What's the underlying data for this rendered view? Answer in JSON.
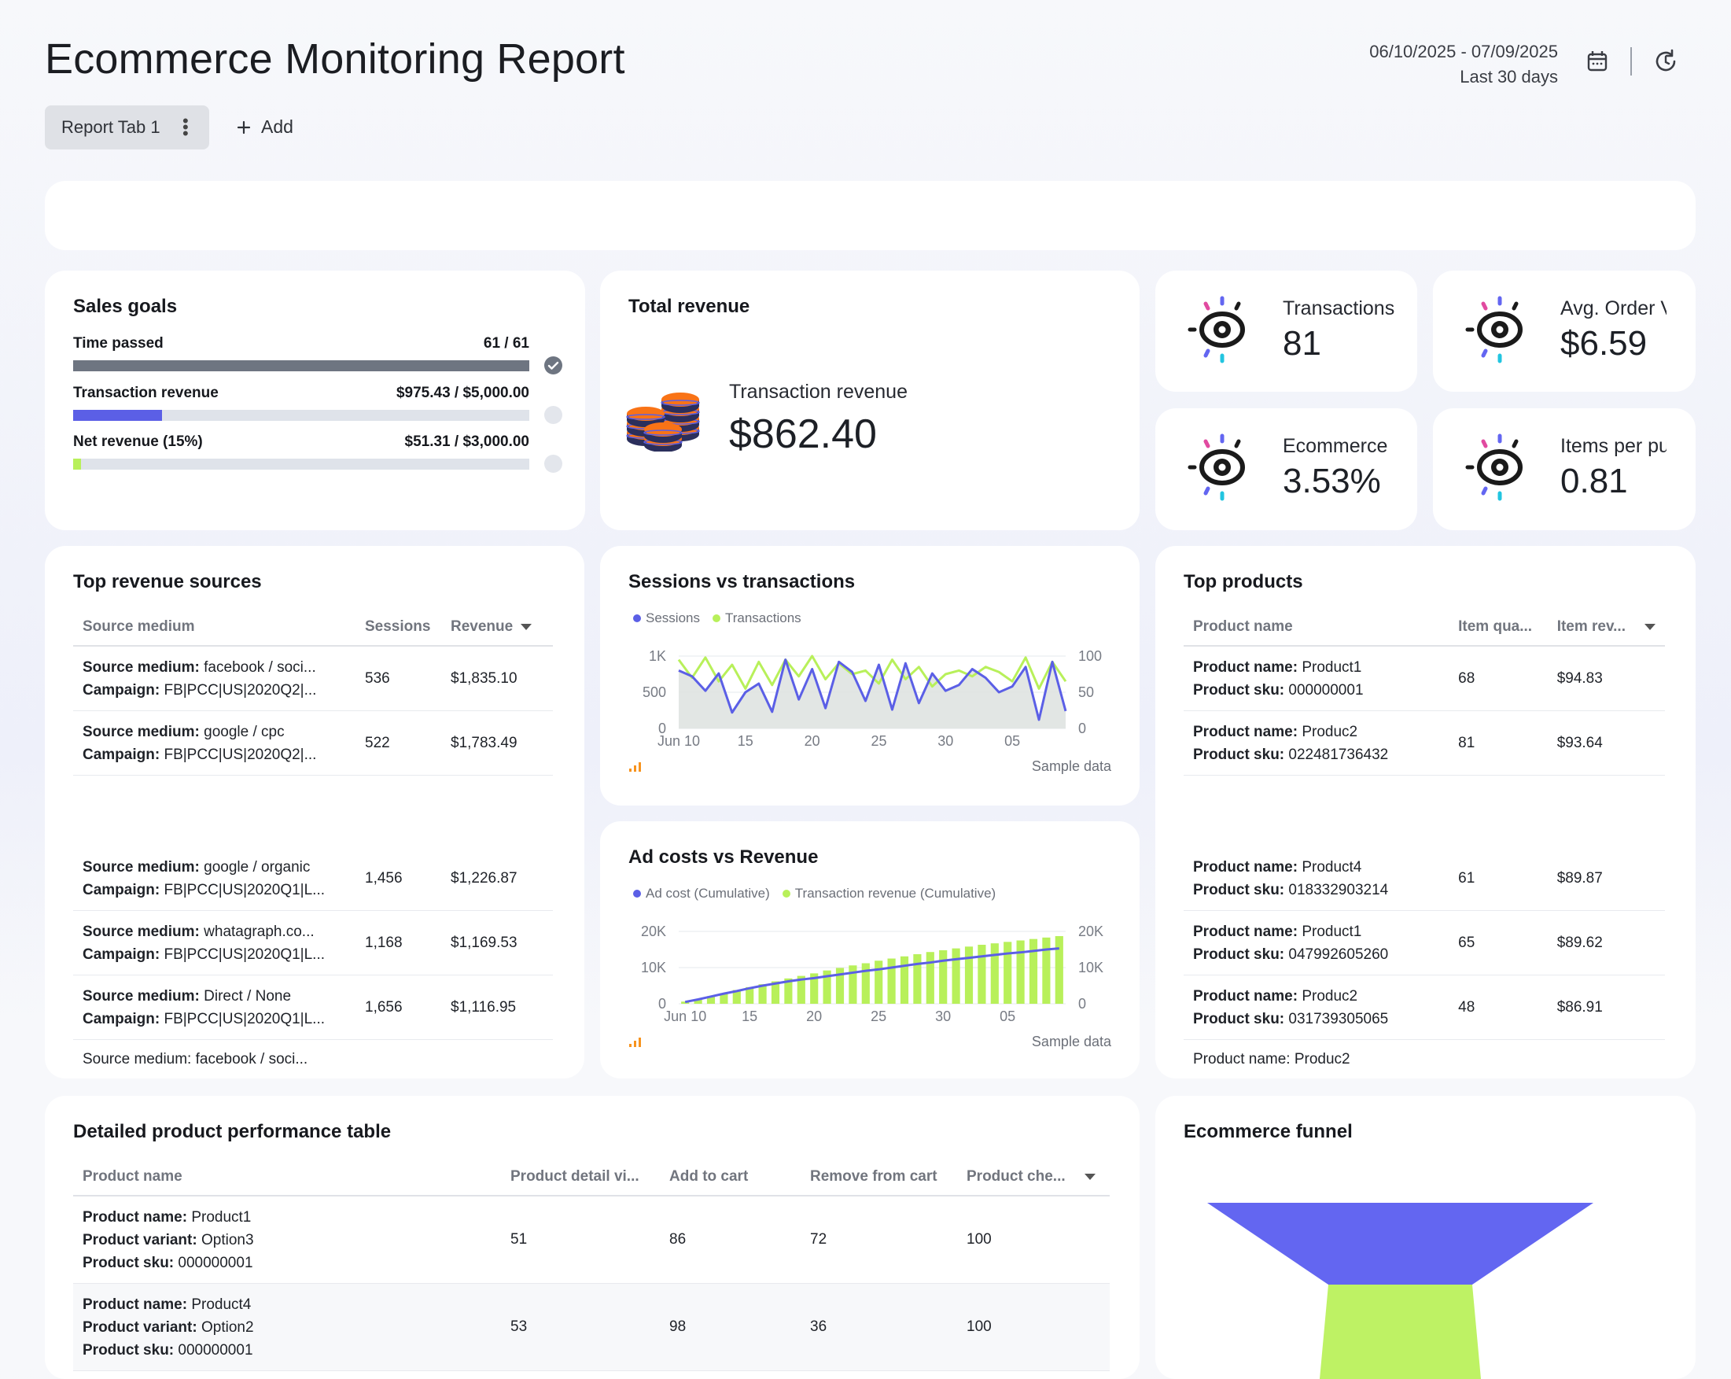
{
  "header": {
    "title": "Ecommerce Monitoring Report",
    "date_range": "06/10/2025 - 07/09/2025",
    "period": "Last 30 days",
    "tab_label": "Report Tab 1",
    "add_label": "Add"
  },
  "sales_goals": {
    "title": "Sales goals",
    "goals": [
      {
        "label": "Time passed",
        "value": "61 / 61",
        "progress": 1.0,
        "color": "#6e7581",
        "done": true
      },
      {
        "label": "Transaction revenue",
        "value": "$975.43 / $5,000.00",
        "progress": 0.195,
        "color": "#5b5fe6",
        "done": false
      },
      {
        "label": "Net revenue (15%)",
        "value": "$51.31 / $3,000.00",
        "progress": 0.017,
        "color": "#b8f05a",
        "done": false
      }
    ]
  },
  "total_revenue": {
    "title": "Total revenue",
    "label": "Transaction revenue",
    "value": "$862.40"
  },
  "kpis": [
    {
      "label": "Transactions",
      "value": "81"
    },
    {
      "label": "Avg. Order Value",
      "value": "$6.59"
    },
    {
      "label": "Ecommerce",
      "value": "3.53%"
    },
    {
      "label": "Items per purchase",
      "value": "0.81"
    }
  ],
  "top_revenue_sources": {
    "title": "Top revenue sources",
    "columns": [
      "Source medium",
      "Sessions",
      "Revenue"
    ],
    "rows": [
      {
        "source_key": "Source medium:",
        "source": "facebook / soci...",
        "campaign_key": "Campaign:",
        "campaign": "FB|PCC|US|2020Q2|...",
        "sessions": "536",
        "revenue": "$1,835.10"
      },
      {
        "source_key": "Source medium:",
        "source": "google / cpc",
        "campaign_key": "Campaign:",
        "campaign": "FB|PCC|US|2020Q2|...",
        "sessions": "522",
        "revenue": "$1,783.49"
      },
      {
        "source_key": "Source medium:",
        "source": "google / organic",
        "campaign_key": "Campaign:",
        "campaign": "FB|PCC|US|2020Q1|L...",
        "sessions": "1,456",
        "revenue": "$1,226.87"
      },
      {
        "source_key": "Source medium:",
        "source": "whatagraph.co...",
        "campaign_key": "Campaign:",
        "campaign": "FB|PCC|US|2020Q1|L...",
        "sessions": "1,168",
        "revenue": "$1,169.53"
      },
      {
        "source_key": "Source medium:",
        "source": "Direct / None",
        "campaign_key": "Campaign:",
        "campaign": "FB|PCC|US|2020Q1|L...",
        "sessions": "1,656",
        "revenue": "$1,116.95"
      }
    ],
    "partial_row": "Source medium: facebook / soci..."
  },
  "sessions_vs_transactions": {
    "title": "Sessions vs transactions",
    "footer": "Sample data"
  },
  "ad_costs_vs_revenue": {
    "title": "Ad costs vs Revenue",
    "footer": "Sample data"
  },
  "chart_data": [
    {
      "type": "line",
      "title": "Sessions vs transactions",
      "x": [
        "Jun 10",
        "11",
        "12",
        "13",
        "14",
        "15",
        "16",
        "17",
        "18",
        "19",
        "20",
        "21",
        "22",
        "23",
        "24",
        "25",
        "26",
        "27",
        "28",
        "29",
        "30",
        "Jul 1",
        "2",
        "3",
        "4",
        "05",
        "6",
        "7",
        "8",
        "9"
      ],
      "xticks": [
        "Jun 10",
        "15",
        "20",
        "25",
        "30",
        "05"
      ],
      "series": [
        {
          "name": "Sessions",
          "axis": "left",
          "color": "#5b5fe6",
          "values": [
            800,
            720,
            520,
            760,
            220,
            500,
            620,
            230,
            950,
            400,
            820,
            280,
            920,
            780,
            380,
            880,
            260,
            900,
            350,
            760,
            520,
            600,
            820,
            700,
            500,
            580,
            850,
            120,
            920,
            240
          ]
        },
        {
          "name": "Transactions",
          "axis": "right",
          "color": "#b8f05a",
          "values": [
            95,
            70,
            98,
            65,
            88,
            55,
            92,
            60,
            95,
            72,
            100,
            68,
            90,
            75,
            80,
            62,
            95,
            68,
            85,
            58,
            75,
            80,
            72,
            85,
            78,
            65,
            98,
            55,
            92,
            65
          ]
        }
      ],
      "ylim_left": [
        0,
        1000
      ],
      "yticks_left": [
        "0",
        "500",
        "1K"
      ],
      "ylim_right": [
        0,
        100
      ],
      "yticks_right": [
        "0",
        "50",
        "100"
      ]
    },
    {
      "type": "bar",
      "title": "Ad costs vs Revenue",
      "x": [
        "Jun 10",
        "11",
        "12",
        "13",
        "14",
        "15",
        "16",
        "17",
        "18",
        "19",
        "20",
        "21",
        "22",
        "23",
        "24",
        "25",
        "26",
        "27",
        "28",
        "29",
        "30",
        "Jul 1",
        "2",
        "3",
        "4",
        "05",
        "6",
        "7",
        "8",
        "9"
      ],
      "xticks": [
        "Jun 10",
        "15",
        "20",
        "25",
        "30",
        "05"
      ],
      "series": [
        {
          "name": "Ad cost (Cumulative)",
          "kind": "line",
          "color": "#5b5fe6",
          "values": [
            500,
            1200,
            2000,
            2800,
            3500,
            4300,
            5000,
            5600,
            6200,
            6700,
            7100,
            7600,
            8100,
            8600,
            9100,
            9500,
            10000,
            10500,
            11000,
            11400,
            11900,
            12300,
            12700,
            13100,
            13500,
            13900,
            14200,
            14600,
            15000,
            15300
          ]
        },
        {
          "name": "Transaction revenue (Cumulative)",
          "kind": "bar",
          "color": "#b8f05a",
          "values": [
            600,
            1300,
            2100,
            2900,
            3800,
            4600,
            5400,
            6200,
            7000,
            7700,
            8400,
            9200,
            9900,
            10600,
            11200,
            11900,
            12500,
            13100,
            13700,
            14300,
            14800,
            15300,
            15800,
            16300,
            16700,
            17100,
            17500,
            17900,
            18300,
            18700
          ]
        }
      ],
      "ylim": [
        0,
        20000
      ],
      "yticks_left": [
        "0",
        "10K",
        "20K"
      ],
      "yticks_right": [
        "0",
        "10K",
        "20K"
      ]
    }
  ],
  "top_products": {
    "title": "Top products",
    "columns": [
      "Product name",
      "Item qua...",
      "Item rev..."
    ],
    "rows": [
      {
        "name_key": "Product name:",
        "name": "Product1",
        "sku_key": "Product sku:",
        "sku": "000000001",
        "qty": "68",
        "rev": "$94.83"
      },
      {
        "name_key": "Product name:",
        "name": "Produc2",
        "sku_key": "Product sku:",
        "sku": "022481736432",
        "qty": "81",
        "rev": "$93.64"
      },
      {
        "name_key": "Product name:",
        "name": "Product4",
        "sku_key": "Product sku:",
        "sku": "018332903214",
        "qty": "61",
        "rev": "$89.87"
      },
      {
        "name_key": "Product name:",
        "name": "Product1",
        "sku_key": "Product sku:",
        "sku": "047992605260",
        "qty": "65",
        "rev": "$89.62"
      },
      {
        "name_key": "Product name:",
        "name": "Produc2",
        "sku_key": "Product sku:",
        "sku": "031739305065",
        "qty": "48",
        "rev": "$86.91"
      }
    ],
    "partial_row": "Product name: Produc2"
  },
  "detailed_table": {
    "title": "Detailed product performance table",
    "columns": [
      "Product name",
      "Product detail vi...",
      "Add to cart",
      "Remove from cart",
      "Product che..."
    ],
    "rows": [
      {
        "name_key": "Product name:",
        "name": "Product1",
        "variant_key": "Product variant:",
        "variant": "Option3",
        "sku_key": "Product sku:",
        "sku": "000000001",
        "views": "51",
        "add": "86",
        "remove": "72",
        "checkout": "100"
      },
      {
        "name_key": "Product name:",
        "name": "Product4",
        "variant_key": "Product variant:",
        "variant": "Option2",
        "sku_key": "Product sku:",
        "sku": "000000001",
        "views": "53",
        "add": "98",
        "remove": "36",
        "checkout": "100"
      }
    ]
  },
  "funnel": {
    "title": "Ecommerce funnel",
    "colors": [
      "#6366f1",
      "#bef264"
    ]
  }
}
